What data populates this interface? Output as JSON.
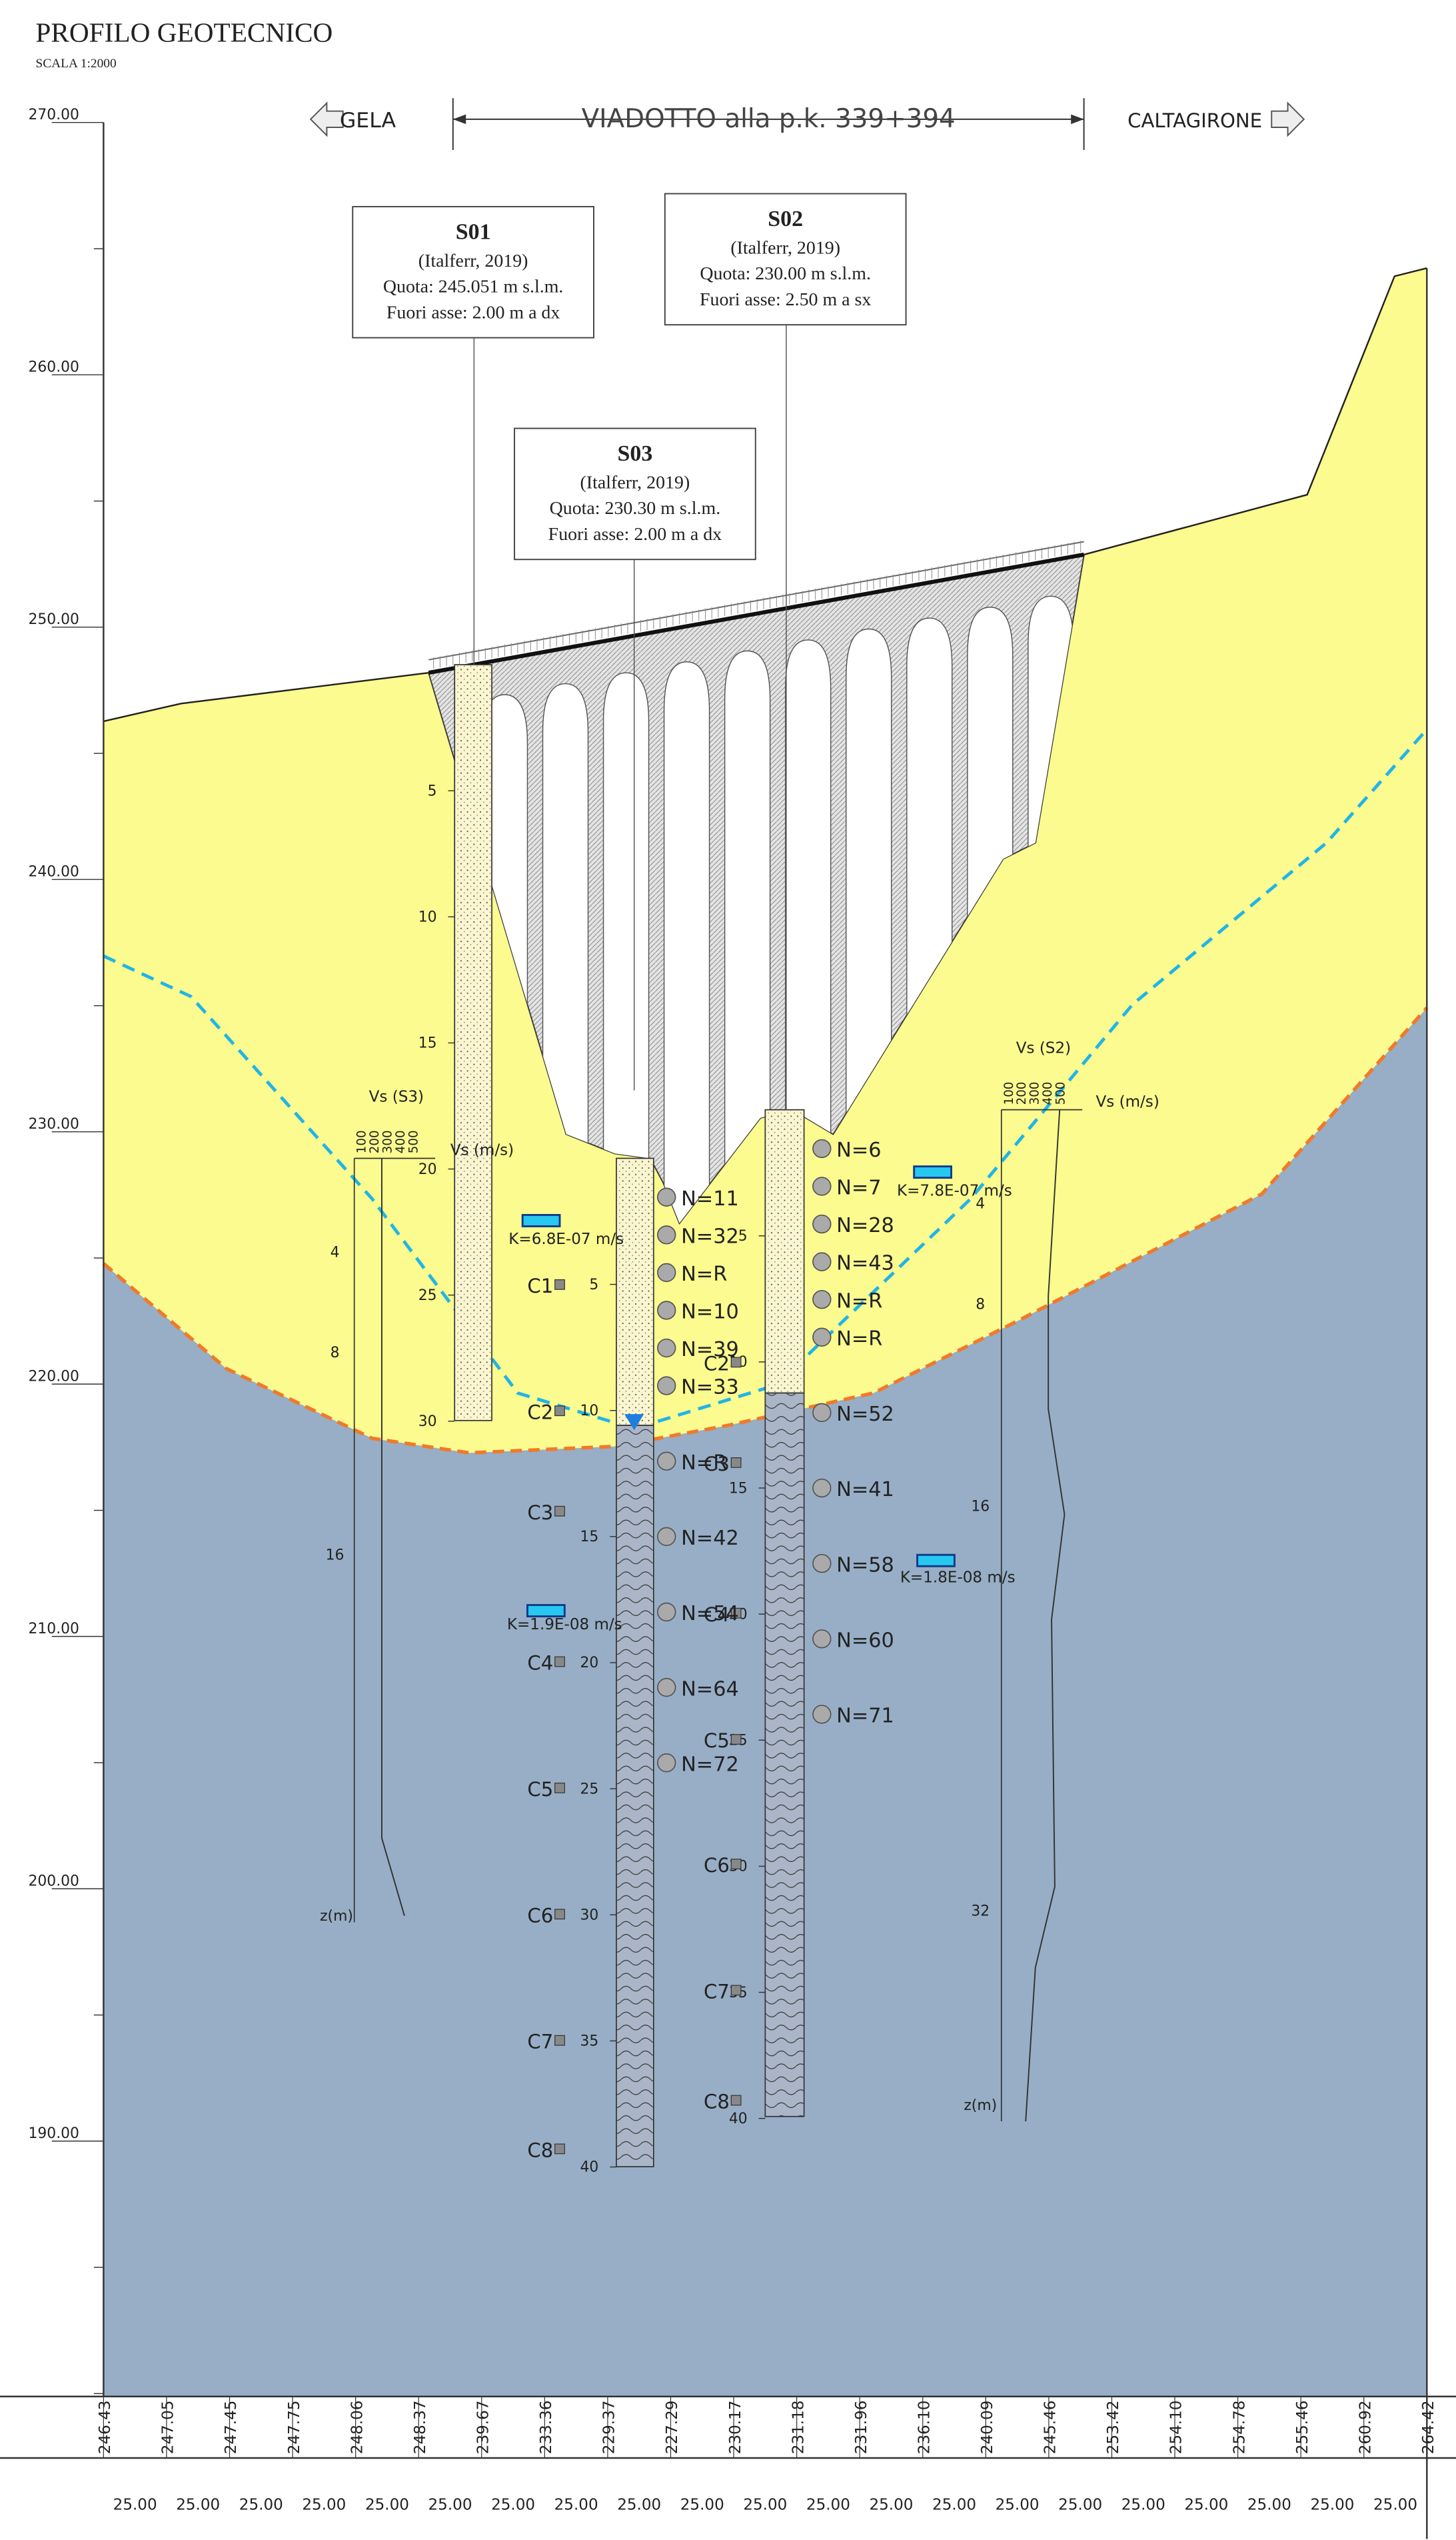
{
  "header": {
    "title": "PROFILO GEOTECNICO",
    "scale": "SCALA 1:2000"
  },
  "direction": {
    "left": "GELA",
    "center": "VIADOTTO alla p.k. 339+394",
    "right": "CALTAGIRONE"
  },
  "elevation_axis": {
    "labels": [
      "270.00",
      "260.00",
      "250.00",
      "240.00",
      "230.00",
      "220.00",
      "210.00",
      "200.00",
      "190.00"
    ]
  },
  "boreholes": [
    {
      "id": "S01",
      "source": "(Italferr, 2019)",
      "quota": "Quota: 245.051 m s.l.m.",
      "offset": "Fuori asse: 2.00 m a dx",
      "depth_labels": [
        "5",
        "10",
        "15",
        "20",
        "25",
        "30"
      ],
      "spt": [],
      "samples": []
    },
    {
      "id": "S02",
      "source": "(Italferr, 2019)",
      "quota": "Quota: 230.00 m s.l.m.",
      "offset": "Fuori asse: 2.50 m a sx",
      "depth_labels": [
        "5",
        "10",
        "15",
        "20",
        "25",
        "30",
        "35",
        "40"
      ],
      "spt": [
        "N=6",
        "N=7",
        "N=28",
        "N=43",
        "N=R",
        "N=R",
        "N=52",
        "N=41",
        "N=58",
        "N=60",
        "N=71"
      ],
      "samples": [
        "C2",
        "C3",
        "C4",
        "C5",
        "C6",
        "C7",
        "C8"
      ]
    },
    {
      "id": "S03",
      "source": "(Italferr, 2019)",
      "quota": "Quota: 230.30 m s.l.m.",
      "offset": "Fuori asse: 2.00 m a dx",
      "depth_labels": [
        "5",
        "10",
        "15",
        "20",
        "25",
        "30",
        "35",
        "40"
      ],
      "spt": [
        "N=11",
        "N=32",
        "N=R",
        "N=10",
        "N=39",
        "N=33",
        "N=R",
        "N=42",
        "N=54",
        "N=64",
        "N=72"
      ],
      "samples": [
        "C1",
        "C2",
        "C3",
        "C4",
        "C5",
        "C6",
        "C7",
        "C8"
      ]
    }
  ],
  "permeability": [
    "K=6.8E-07 m/s",
    "K=7.8E-07 m/s",
    "K=1.8E-08 m/s",
    "K=1.9E-08 m/s"
  ],
  "vs_profiles": [
    {
      "title": "Vs (S3)",
      "axis_label": "Vs (m/s)",
      "speed_ticks": [
        "100",
        "200",
        "300",
        "400",
        "500"
      ],
      "depth_labels": [
        "4",
        "8",
        "16"
      ],
      "depth_axis": "z(m)"
    },
    {
      "title": "Vs (S2)",
      "axis_label": "Vs (m/s)",
      "speed_ticks": [
        "100",
        "200",
        "300",
        "400",
        "500"
      ],
      "depth_labels": [
        "4",
        "8",
        "16",
        "32"
      ],
      "depth_axis": "z(m)"
    }
  ],
  "bottom": {
    "elevations": [
      "246.43",
      "247.05",
      "247.45",
      "247.75",
      "248.06",
      "248.37",
      "239.67",
      "233.36",
      "229.37",
      "227.29",
      "230.17",
      "231.18",
      "231.96",
      "236.10",
      "240.09",
      "245.46",
      "253.42",
      "254.10",
      "254.78",
      "255.46",
      "260.92",
      "264.42"
    ],
    "distances": [
      "25.00",
      "25.00",
      "25.00",
      "25.00",
      "25.00",
      "25.00",
      "25.00",
      "25.00",
      "25.00",
      "25.00",
      "25.00",
      "25.00",
      "25.00",
      "25.00",
      "25.00",
      "25.00",
      "25.00",
      "25.00",
      "25.00",
      "25.00",
      "25.00"
    ]
  }
}
